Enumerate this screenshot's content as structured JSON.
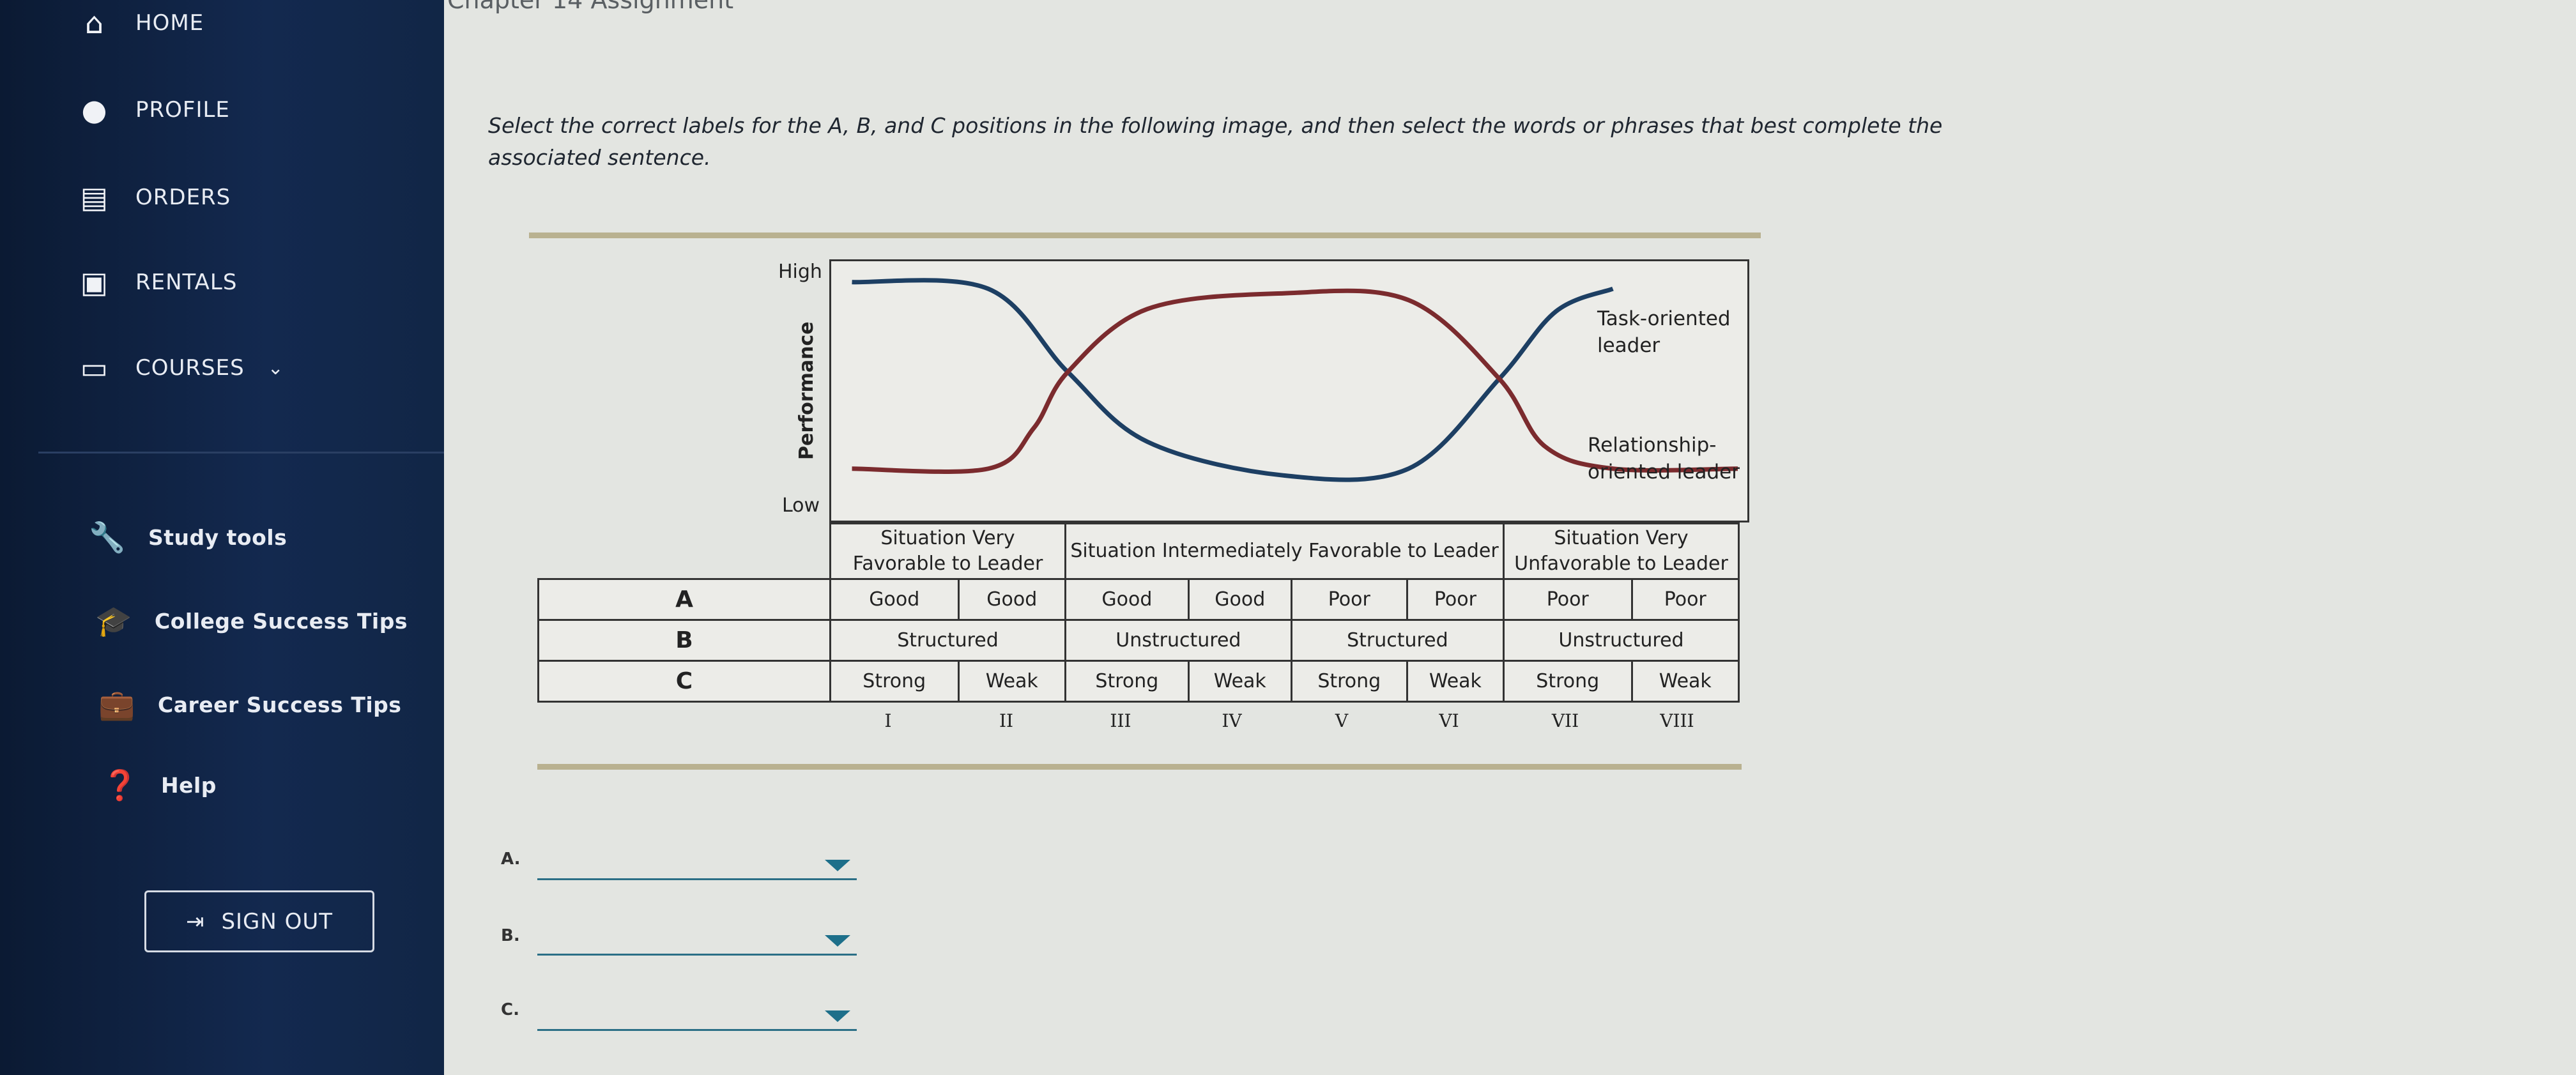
{
  "sidebar": {
    "items": [
      {
        "label": "HOME",
        "icon": "home-icon"
      },
      {
        "label": "PROFILE",
        "icon": "user-icon"
      },
      {
        "label": "ORDERS",
        "icon": "list-icon"
      },
      {
        "label": "RENTALS",
        "icon": "book-icon"
      },
      {
        "label": "COURSES",
        "icon": "course-icon"
      },
      {
        "label": "Study tools",
        "icon": "wrench-icon"
      },
      {
        "label": "College Success Tips",
        "icon": "graduation-cap-icon"
      },
      {
        "label": "Career Success Tips",
        "icon": "briefcase-icon"
      },
      {
        "label": "Help",
        "icon": "help-icon"
      }
    ],
    "sign_out": "SIGN OUT"
  },
  "page": {
    "partial_title": "Chapter 14 Assignment"
  },
  "instructions": "Select the correct labels for the A, B, and C positions in the following image, and then select the words or phrases that best complete the associated sentence.",
  "figure": {
    "y_high": "High",
    "y_low": "Low",
    "y_title": "Performance",
    "legend_task": "Task-oriented leader",
    "legend_rel": "Relationship-oriented leader",
    "headers": [
      "Situation Very Favorable to Leader",
      "Situation Intermediately Favorable to Leader",
      "Situation Very Unfavorable to Leader"
    ],
    "rows": [
      {
        "label": "A",
        "cells": [
          "Good",
          "Good",
          "Good",
          "Good",
          "Poor",
          "Poor",
          "Poor",
          "Poor"
        ]
      },
      {
        "label": "B",
        "cells": [
          "Structured",
          "Unstructured",
          "Structured",
          "Unstructured"
        ]
      },
      {
        "label": "C",
        "cells": [
          "Strong",
          "Weak",
          "Strong",
          "Weak",
          "Strong",
          "Weak",
          "Strong",
          "Weak"
        ]
      }
    ],
    "octants": [
      "I",
      "II",
      "III",
      "IV",
      "V",
      "VI",
      "VII",
      "VIII"
    ]
  },
  "chart_data": {
    "type": "line",
    "ylabel": "Performance",
    "y_ticks": [
      "Low",
      "High"
    ],
    "ylim": [
      0,
      1
    ],
    "xlim": [
      0,
      8
    ],
    "series": [
      {
        "name": "Task-oriented leader",
        "color": "#1d3f63",
        "x": [
          0.2,
          1.4,
          2.1,
          2.8,
          4.0,
          5.1,
          5.9,
          6.4,
          6.9
        ],
        "y": [
          0.95,
          0.92,
          0.55,
          0.24,
          0.09,
          0.12,
          0.52,
          0.82,
          0.92
        ]
      },
      {
        "name": "Relationship-oriented leader",
        "color": "#7b2b2e",
        "x": [
          0.2,
          1.4,
          1.8,
          2.1,
          2.8,
          4.0,
          5.1,
          5.9,
          6.3,
          6.9,
          8.0
        ],
        "y": [
          0.12,
          0.12,
          0.3,
          0.55,
          0.83,
          0.9,
          0.87,
          0.52,
          0.22,
          0.12,
          0.12
        ]
      }
    ]
  },
  "answers": [
    {
      "label": "A.",
      "value": ""
    },
    {
      "label": "B.",
      "value": ""
    },
    {
      "label": "C.",
      "value": ""
    }
  ]
}
